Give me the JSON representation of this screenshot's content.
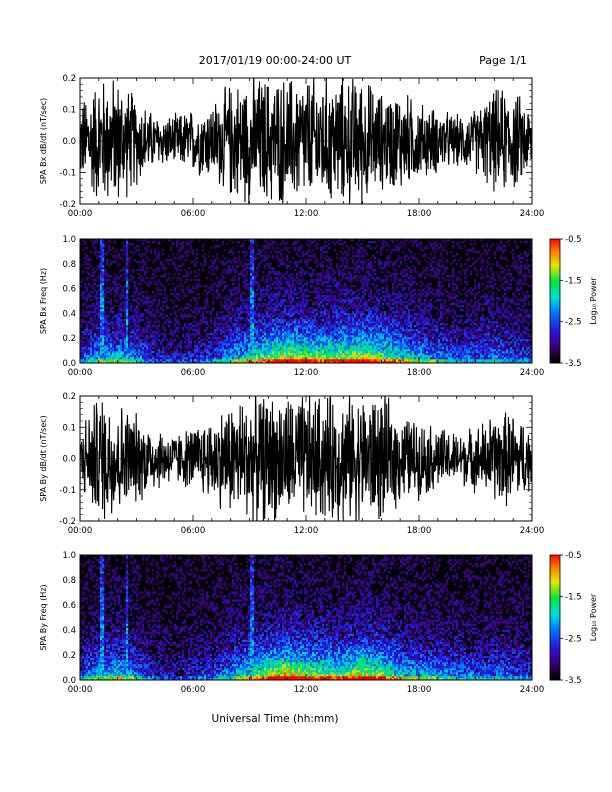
{
  "header": {
    "date_range": "2017/01/19  00:00-24:00 UT",
    "page": "Page 1/1"
  },
  "x_axis_title": "Universal Time (hh:mm)",
  "colors": {
    "trace": "#000000",
    "spectrogram_background": "#000000"
  },
  "chart_data": [
    {
      "type": "line",
      "name": "bx-timeseries",
      "ylabel": "SPA Bx dB/dt (nT/sec)",
      "ylim": [
        -0.2,
        0.2
      ],
      "yticks": [
        "-0.2",
        "-0.1",
        "0.0",
        "0.1",
        "0.2"
      ],
      "xlim": [
        0,
        24
      ],
      "xticks": [
        "00:00",
        "06:00",
        "12:00",
        "18:00",
        "24:00"
      ],
      "amplitude_envelope": [
        {
          "x": 0,
          "y": 0.12
        },
        {
          "x": 1,
          "y": 0.2
        },
        {
          "x": 1.5,
          "y": 0.2
        },
        {
          "x": 2,
          "y": 0.2
        },
        {
          "x": 3,
          "y": 0.14
        },
        {
          "x": 4,
          "y": 0.08
        },
        {
          "x": 5,
          "y": 0.08
        },
        {
          "x": 6,
          "y": 0.1
        },
        {
          "x": 7,
          "y": 0.12
        },
        {
          "x": 8,
          "y": 0.18
        },
        {
          "x": 9,
          "y": 0.2
        },
        {
          "x": 10,
          "y": 0.2
        },
        {
          "x": 12,
          "y": 0.2
        },
        {
          "x": 14,
          "y": 0.2
        },
        {
          "x": 15,
          "y": 0.2
        },
        {
          "x": 16,
          "y": 0.15
        },
        {
          "x": 17,
          "y": 0.16
        },
        {
          "x": 18,
          "y": 0.12
        },
        {
          "x": 19,
          "y": 0.1
        },
        {
          "x": 20,
          "y": 0.08
        },
        {
          "x": 21,
          "y": 0.1
        },
        {
          "x": 22,
          "y": 0.16
        },
        {
          "x": 23,
          "y": 0.16
        },
        {
          "x": 24,
          "y": 0.1
        }
      ]
    },
    {
      "type": "heatmap",
      "name": "bx-spectrogram",
      "ylabel": "SPA Bx Freq (Hz)",
      "ylim": [
        0.0,
        1.0
      ],
      "yticks": [
        "0.0",
        "0.2",
        "0.4",
        "0.6",
        "0.8",
        "1.0"
      ],
      "xlim": [
        0,
        24
      ],
      "xticks": [
        "00:00",
        "06:00",
        "12:00",
        "18:00",
        "24:00"
      ],
      "colorbar_label": "Log₁₀ Power",
      "colorbar_range": [
        -3.5,
        -0.5
      ],
      "colorbar_ticks": [
        "-0.5",
        "-1.5",
        "-2.5",
        "-3.5"
      ],
      "activity": [
        {
          "x": 0,
          "v": 0.3
        },
        {
          "x": 1,
          "v": 0.5
        },
        {
          "x": 2,
          "v": 0.5
        },
        {
          "x": 3,
          "v": 0.4
        },
        {
          "x": 4,
          "v": 0.25
        },
        {
          "x": 5,
          "v": 0.2
        },
        {
          "x": 6,
          "v": 0.25
        },
        {
          "x": 7,
          "v": 0.3
        },
        {
          "x": 8,
          "v": 0.45
        },
        {
          "x": 9,
          "v": 0.6
        },
        {
          "x": 10,
          "v": 0.7
        },
        {
          "x": 11,
          "v": 0.8
        },
        {
          "x": 12,
          "v": 0.75
        },
        {
          "x": 13,
          "v": 0.7
        },
        {
          "x": 14,
          "v": 0.75
        },
        {
          "x": 15,
          "v": 0.8
        },
        {
          "x": 16,
          "v": 0.7
        },
        {
          "x": 17,
          "v": 0.6
        },
        {
          "x": 18,
          "v": 0.5
        },
        {
          "x": 19,
          "v": 0.4
        },
        {
          "x": 20,
          "v": 0.35
        },
        {
          "x": 21,
          "v": 0.35
        },
        {
          "x": 22,
          "v": 0.4
        },
        {
          "x": 23,
          "v": 0.35
        },
        {
          "x": 24,
          "v": 0.3
        }
      ],
      "bright_streaks": [
        1.2,
        2.5,
        9.1
      ]
    },
    {
      "type": "line",
      "name": "by-timeseries",
      "ylabel": "SPA By dB/dt (nT/sec)",
      "ylim": [
        -0.2,
        0.2
      ],
      "yticks": [
        "-0.2",
        "-0.1",
        "0.0",
        "0.1",
        "0.2"
      ],
      "xlim": [
        0,
        24
      ],
      "xticks": [
        "00:00",
        "06:00",
        "12:00",
        "18:00",
        "24:00"
      ],
      "amplitude_envelope": [
        {
          "x": 0,
          "y": 0.1
        },
        {
          "x": 1,
          "y": 0.2
        },
        {
          "x": 1.5,
          "y": 0.2
        },
        {
          "x": 2,
          "y": 0.18
        },
        {
          "x": 3,
          "y": 0.14
        },
        {
          "x": 4,
          "y": 0.1
        },
        {
          "x": 5,
          "y": 0.08
        },
        {
          "x": 6,
          "y": 0.1
        },
        {
          "x": 7,
          "y": 0.13
        },
        {
          "x": 8,
          "y": 0.18
        },
        {
          "x": 9,
          "y": 0.2
        },
        {
          "x": 10,
          "y": 0.2
        },
        {
          "x": 12,
          "y": 0.2
        },
        {
          "x": 14,
          "y": 0.2
        },
        {
          "x": 15,
          "y": 0.2
        },
        {
          "x": 16,
          "y": 0.2
        },
        {
          "x": 17,
          "y": 0.14
        },
        {
          "x": 18,
          "y": 0.12
        },
        {
          "x": 19,
          "y": 0.1
        },
        {
          "x": 20,
          "y": 0.08
        },
        {
          "x": 21,
          "y": 0.1
        },
        {
          "x": 22,
          "y": 0.14
        },
        {
          "x": 23,
          "y": 0.15
        },
        {
          "x": 24,
          "y": 0.1
        }
      ]
    },
    {
      "type": "heatmap",
      "name": "by-spectrogram",
      "ylabel": "SPA By Freq (Hz)",
      "ylim": [
        0.0,
        1.0
      ],
      "yticks": [
        "0.0",
        "0.2",
        "0.4",
        "0.6",
        "0.8",
        "1.0"
      ],
      "xlim": [
        0,
        24
      ],
      "xticks": [
        "00:00",
        "06:00",
        "12:00",
        "18:00",
        "24:00"
      ],
      "colorbar_label": "Log₁₀ Power",
      "colorbar_range": [
        -3.5,
        -0.5
      ],
      "colorbar_ticks": [
        "-0.5",
        "-1.5",
        "-2.5",
        "-3.5"
      ],
      "activity": [
        {
          "x": 0,
          "v": 0.3
        },
        {
          "x": 1,
          "v": 0.5
        },
        {
          "x": 2,
          "v": 0.55
        },
        {
          "x": 3,
          "v": 0.4
        },
        {
          "x": 4,
          "v": 0.25
        },
        {
          "x": 5,
          "v": 0.2
        },
        {
          "x": 6,
          "v": 0.25
        },
        {
          "x": 7,
          "v": 0.3
        },
        {
          "x": 8,
          "v": 0.45
        },
        {
          "x": 9,
          "v": 0.6
        },
        {
          "x": 10,
          "v": 0.75
        },
        {
          "x": 11,
          "v": 0.85
        },
        {
          "x": 12,
          "v": 0.75
        },
        {
          "x": 13,
          "v": 0.7
        },
        {
          "x": 14,
          "v": 0.7
        },
        {
          "x": 15,
          "v": 0.8
        },
        {
          "x": 16,
          "v": 0.7
        },
        {
          "x": 17,
          "v": 0.55
        },
        {
          "x": 18,
          "v": 0.5
        },
        {
          "x": 19,
          "v": 0.45
        },
        {
          "x": 20,
          "v": 0.4
        },
        {
          "x": 21,
          "v": 0.35
        },
        {
          "x": 22,
          "v": 0.4
        },
        {
          "x": 23,
          "v": 0.35
        },
        {
          "x": 24,
          "v": 0.3
        }
      ],
      "bright_streaks": [
        1.2,
        2.5,
        9.1
      ]
    }
  ]
}
